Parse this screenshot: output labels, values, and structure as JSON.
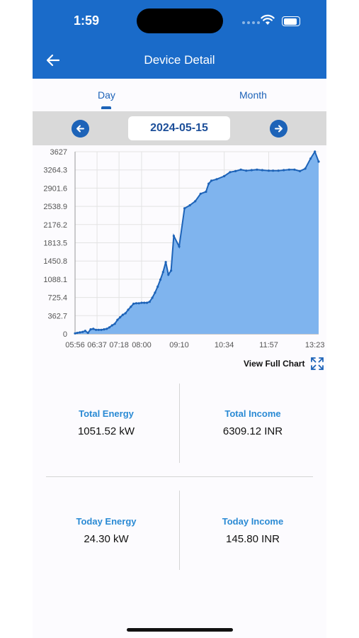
{
  "status_bar": {
    "time": "1:59"
  },
  "header": {
    "title": "Device Detail",
    "back_icon": "arrow-left-icon"
  },
  "tabs": [
    {
      "label": "Day",
      "active": true
    },
    {
      "label": "Month",
      "active": false
    }
  ],
  "date_selector": {
    "date": "2024-05-15",
    "prev_icon": "arrow-left-icon",
    "next_icon": "arrow-right-icon"
  },
  "chart_data": {
    "type": "area",
    "y_ticks": [
      "0",
      "362.7",
      "725.4",
      "1088.1",
      "1450.8",
      "1813.5",
      "2176.2",
      "2538.9",
      "2901.6",
      "3264.3",
      "3627"
    ],
    "x_ticks": [
      "05:56",
      "06:37",
      "07:18",
      "08:00",
      "09:10",
      "10:34",
      "11:57",
      "13:23"
    ],
    "ylim": [
      0,
      3627
    ],
    "grid": true,
    "color": "#7fb4ee",
    "line_color": "#1d63b8",
    "x": [
      "05:56",
      "06:00",
      "06:05",
      "06:10",
      "06:15",
      "06:20",
      "06:25",
      "06:30",
      "06:35",
      "06:40",
      "06:45",
      "06:50",
      "06:55",
      "07:00",
      "07:05",
      "07:10",
      "07:15",
      "07:20",
      "07:25",
      "07:30",
      "07:35",
      "07:40",
      "07:45",
      "07:50",
      "07:55",
      "08:00",
      "08:05",
      "08:10",
      "08:15",
      "08:20",
      "08:25",
      "08:30",
      "08:35",
      "08:40",
      "08:45",
      "08:50",
      "08:55",
      "09:00",
      "09:10",
      "09:20",
      "09:30",
      "09:40",
      "09:50",
      "10:00",
      "10:05",
      "10:10",
      "10:20",
      "10:34",
      "10:45",
      "10:55",
      "11:05",
      "11:15",
      "11:25",
      "11:35",
      "11:45",
      "11:57",
      "12:05",
      "12:15",
      "12:25",
      "12:35",
      "12:45",
      "12:55",
      "13:05",
      "13:15",
      "13:23",
      "13:30"
    ],
    "values": [
      10,
      20,
      30,
      40,
      60,
      20,
      90,
      100,
      80,
      80,
      80,
      90,
      100,
      130,
      170,
      200,
      280,
      330,
      380,
      410,
      480,
      540,
      600,
      610,
      610,
      620,
      620,
      620,
      640,
      720,
      820,
      940,
      1080,
      1230,
      1430,
      1180,
      1260,
      1950,
      1740,
      2500,
      2560,
      2640,
      2790,
      2830,
      2990,
      3050,
      3080,
      3140,
      3220,
      3240,
      3270,
      3250,
      3260,
      3270,
      3260,
      3250,
      3250,
      3250,
      3260,
      3270,
      3270,
      3240,
      3290,
      3490,
      3627,
      3430
    ]
  },
  "view_full_chart": {
    "label": "View Full Chart",
    "icon": "expand-icon"
  },
  "stats": {
    "total_energy": {
      "label": "Total Energy",
      "value": "1051.52 kW"
    },
    "total_income": {
      "label": "Total Income",
      "value": "6309.12 INR"
    },
    "today_energy": {
      "label": "Today Energy",
      "value": "24.30 kW"
    },
    "today_income": {
      "label": "Today Income",
      "value": "145.80 INR"
    }
  }
}
